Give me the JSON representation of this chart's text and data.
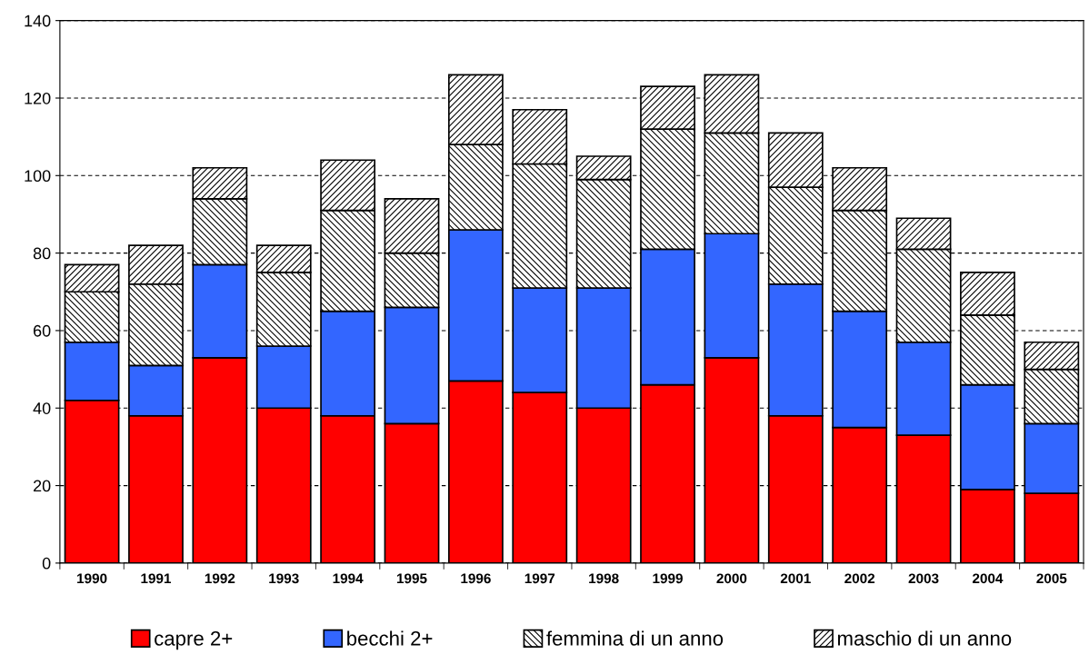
{
  "chart_data": {
    "type": "bar",
    "stacked": true,
    "categories": [
      "1990",
      "1991",
      "1992",
      "1993",
      "1994",
      "1995",
      "1996",
      "1997",
      "1998",
      "1999",
      "2000",
      "2001",
      "2002",
      "2003",
      "2004",
      "2005"
    ],
    "series": [
      {
        "name": "capre 2+",
        "color": "#ff0000",
        "values": [
          42,
          38,
          53,
          40,
          38,
          36,
          47,
          44,
          40,
          46,
          53,
          38,
          35,
          33,
          19,
          18
        ]
      },
      {
        "name": "becchi 2+",
        "color": "#3366ff",
        "values": [
          15,
          13,
          24,
          16,
          27,
          30,
          39,
          27,
          31,
          35,
          32,
          34,
          30,
          24,
          27,
          18
        ]
      },
      {
        "name": "femmina di un anno",
        "color": "#000000",
        "values": [
          13,
          21,
          17,
          19,
          26,
          14,
          22,
          32,
          28,
          31,
          26,
          25,
          26,
          24,
          18,
          14
        ]
      },
      {
        "name": "maschio di un anno",
        "color": "#000000",
        "values": [
          7,
          10,
          8,
          7,
          13,
          14,
          18,
          14,
          6,
          11,
          15,
          14,
          11,
          8,
          11,
          7
        ]
      }
    ],
    "ylim": [
      0,
      140
    ],
    "yticks": [
      0,
      20,
      40,
      60,
      80,
      100,
      120,
      140
    ],
    "grid": "y",
    "legend": "bottom"
  }
}
